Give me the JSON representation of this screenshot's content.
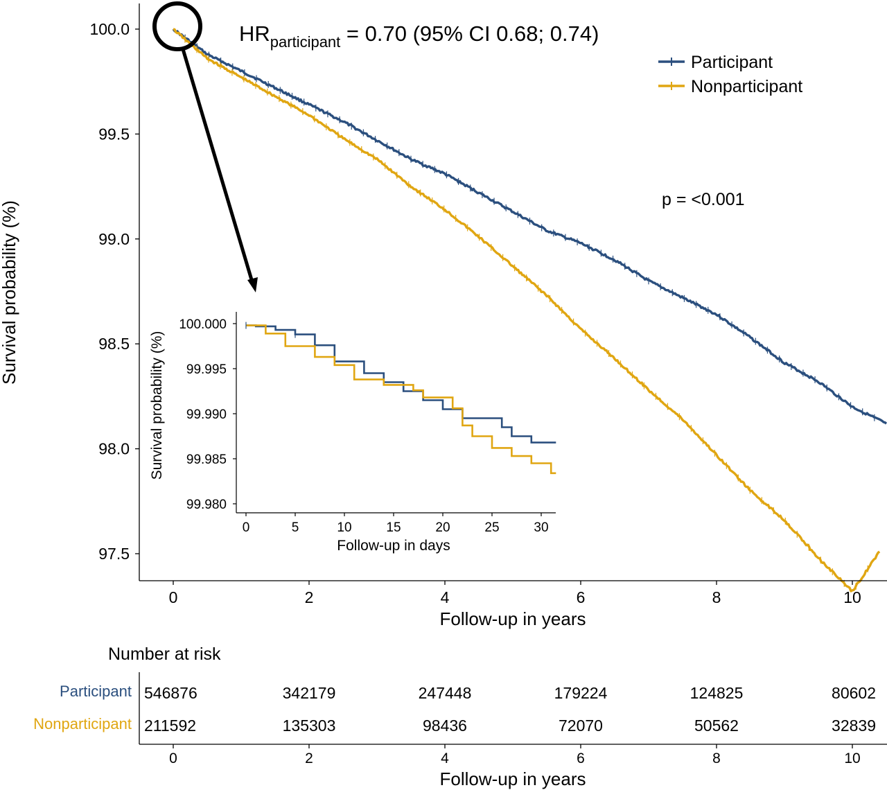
{
  "colors": {
    "participant": "#2b4f7e",
    "nonparticipant": "#e0a612",
    "axis": "#000000",
    "text": "#000000"
  },
  "annotations": {
    "hr_prefix": "HR",
    "hr_subscript": "participant",
    "hr_value_text": " = 0.70 (95% CI 0.68; 0.74)",
    "p_value": "p = <0.001"
  },
  "chart_data": [
    {
      "id": "main",
      "type": "line",
      "title": "",
      "xlabel": "Follow-up in years",
      "ylabel": "Survival probability (%)",
      "xlim": [
        0,
        10.5
      ],
      "ylim": [
        97.4,
        100.1
      ],
      "xticks": [
        0,
        2,
        4,
        6,
        8,
        10
      ],
      "yticks": [
        97.5,
        98.0,
        98.5,
        99.0,
        99.5,
        100.0
      ],
      "ytick_labels": [
        "97.5",
        "98.0",
        "98.5",
        "99.0",
        "99.5",
        "100.0"
      ],
      "legend": {
        "position": "top-right",
        "entries": [
          "Participant",
          "Nonparticipant"
        ]
      },
      "series": [
        {
          "name": "Participant",
          "x": [
            0,
            0.5,
            1,
            1.5,
            2,
            2.5,
            3,
            3.5,
            4,
            4.5,
            5,
            5.5,
            6,
            6.5,
            7,
            7.5,
            8,
            8.5,
            9,
            9.5,
            10,
            10.5
          ],
          "y": [
            100.0,
            99.88,
            99.8,
            99.72,
            99.64,
            99.56,
            99.47,
            99.38,
            99.31,
            99.22,
            99.13,
            99.04,
            98.98,
            98.9,
            98.8,
            98.72,
            98.64,
            98.53,
            98.41,
            98.32,
            98.2,
            98.12
          ]
        },
        {
          "name": "Nonparticipant",
          "x": [
            0,
            0.5,
            1,
            1.5,
            2,
            2.5,
            3,
            3.5,
            4,
            4.5,
            5,
            5.5,
            6,
            6.5,
            7,
            7.5,
            8,
            8.5,
            9,
            9.5,
            10,
            10.4
          ],
          "y": [
            100.0,
            99.86,
            99.77,
            99.68,
            99.59,
            99.48,
            99.38,
            99.25,
            99.14,
            99.01,
            98.87,
            98.73,
            98.57,
            98.43,
            98.28,
            98.14,
            97.97,
            97.8,
            97.66,
            97.48,
            97.32,
            97.51
          ]
        }
      ]
    },
    {
      "id": "inset",
      "type": "line",
      "title": "",
      "xlabel": "Follow-up in days",
      "ylabel": "Survival probability (%)",
      "xlim": [
        -1,
        31.5
      ],
      "ylim": [
        99.979,
        100.0005
      ],
      "xticks": [
        0,
        5,
        10,
        15,
        20,
        25,
        30
      ],
      "yticks": [
        99.98,
        99.985,
        99.99,
        99.995,
        100.0
      ],
      "ytick_labels": [
        "99.980",
        "99.985",
        "99.990",
        "99.995",
        "100.000"
      ],
      "series": [
        {
          "name": "Participant",
          "step": true,
          "x": [
            0,
            1,
            3,
            5,
            7,
            9,
            12,
            14,
            16,
            18,
            20,
            22,
            24,
            26,
            27,
            29,
            30,
            31.5
          ],
          "y": [
            99.9998,
            99.9997,
            99.9993,
            99.9988,
            99.9976,
            99.9958,
            99.9945,
            99.9935,
            99.9925,
            99.9915,
            99.9905,
            99.9895,
            99.9895,
            99.9885,
            99.9875,
            99.9868,
            99.9868,
            99.9868
          ]
        },
        {
          "name": "Nonparticipant",
          "step": true,
          "x": [
            0,
            2,
            4,
            7,
            9,
            11,
            14,
            17,
            18,
            21,
            22,
            23,
            25,
            27,
            29,
            31,
            31.5
          ],
          "y": [
            99.9998,
            99.9989,
            99.9975,
            99.9963,
            99.9954,
            99.9938,
            99.9932,
            99.9926,
            99.9918,
            99.9906,
            99.9887,
            99.9875,
            99.9862,
            99.9853,
            99.9845,
            99.9834,
            99.9834
          ]
        }
      ]
    },
    {
      "id": "risk_table",
      "type": "table",
      "title": "Number at risk",
      "xlabel": "Follow-up in years",
      "xlim": [
        0,
        10.5
      ],
      "xticks": [
        0,
        2,
        4,
        6,
        8,
        10
      ],
      "rows": [
        {
          "name": "Participant",
          "values": [
            "546876",
            "342179",
            "247448",
            "179224",
            "124825",
            "80602"
          ]
        },
        {
          "name": "Nonparticipant",
          "values": [
            "211592",
            "135303",
            "98436",
            "72070",
            "50562",
            "32839"
          ]
        }
      ]
    }
  ]
}
